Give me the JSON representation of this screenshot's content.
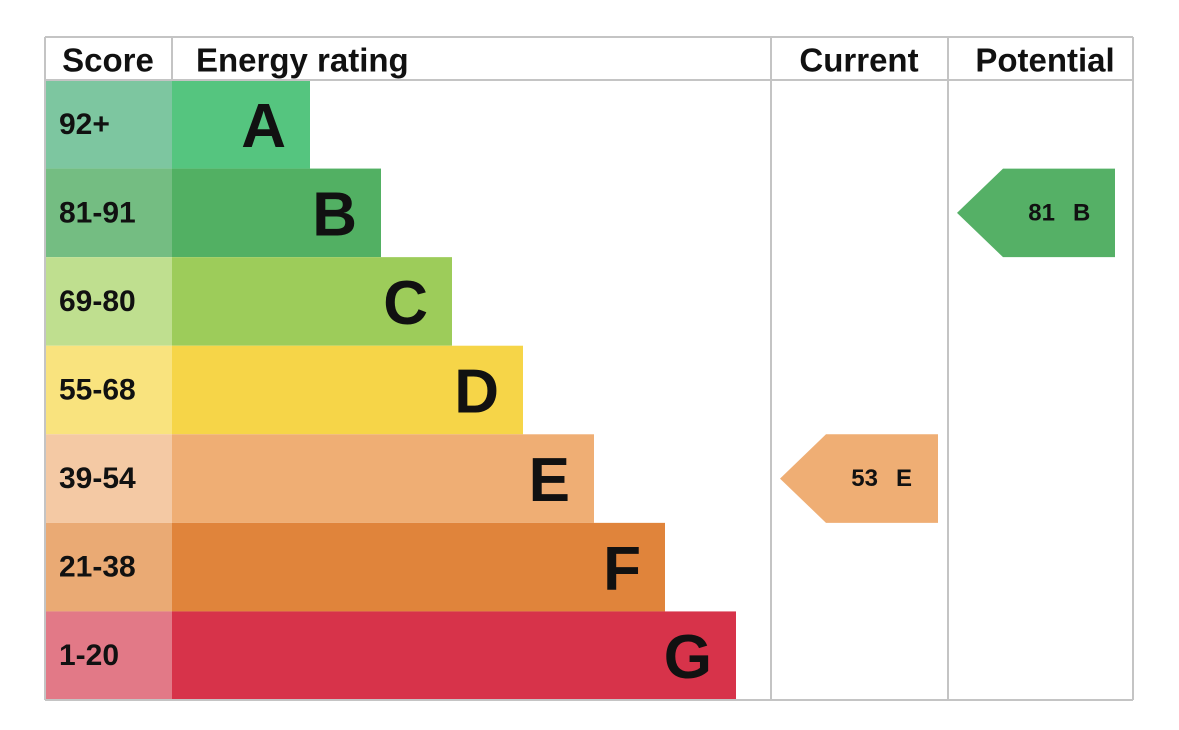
{
  "headers": {
    "score": "Score",
    "rating": "Energy rating",
    "current": "Current",
    "potential": "Potential"
  },
  "bands": [
    {
      "score": "92+",
      "letter": "A",
      "color": "#55c57f",
      "score_color": "#7dc6a0"
    },
    {
      "score": "81-91",
      "letter": "B",
      "color": "#52b063",
      "score_color": "#74bd82"
    },
    {
      "score": "69-80",
      "letter": "C",
      "color": "#9dcc5a",
      "score_color": "#bfdf8f"
    },
    {
      "score": "55-68",
      "letter": "D",
      "color": "#f6d548",
      "score_color": "#f9e37e"
    },
    {
      "score": "39-54",
      "letter": "E",
      "color": "#efae74",
      "score_color": "#f4c9a4"
    },
    {
      "score": "21-38",
      "letter": "F",
      "color": "#e0843b",
      "score_color": "#eaaa74"
    },
    {
      "score": "1-20",
      "letter": "G",
      "color": "#d7334a",
      "score_color": "#e27987"
    }
  ],
  "current": {
    "value": 53,
    "letter": "E",
    "color": "#efae74"
  },
  "potential": {
    "value": 81,
    "letter": "B",
    "color": "#55b066"
  }
}
